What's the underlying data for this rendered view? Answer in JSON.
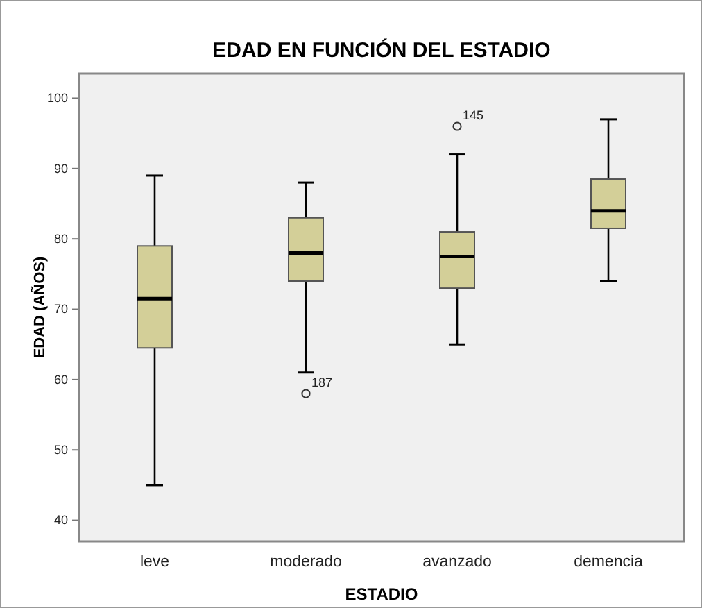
{
  "chart_data": {
    "type": "box",
    "title": "EDAD EN FUNCIÓN DEL ESTADIO",
    "xlabel": "ESTADIO",
    "ylabel": "EDAD (AÑOS)",
    "categories": [
      "leve",
      "moderado",
      "avanzado",
      "demencia"
    ],
    "color": "#d3cf98",
    "boxes": [
      {
        "low": 45,
        "q1": 64.5,
        "median": 71.5,
        "q3": 79,
        "high": 89
      },
      {
        "low": 61,
        "q1": 74,
        "median": 78,
        "q3": 83,
        "high": 88,
        "outliers": [
          58
        ]
      },
      {
        "low": 65,
        "q1": 73,
        "median": 77.5,
        "q3": 81,
        "high": 92,
        "outliers": [
          96
        ]
      },
      {
        "low": 74,
        "q1": 81.5,
        "median": 84,
        "q3": 88.5,
        "high": 97
      }
    ],
    "ylim": [
      37,
      103.5
    ],
    "yticks": [
      40,
      50,
      60,
      70,
      80,
      90,
      100
    ],
    "annotations": [
      "187",
      "145"
    ]
  }
}
